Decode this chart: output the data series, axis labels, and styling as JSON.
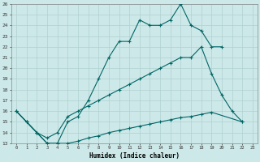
{
  "xlabel": "Humidex (Indice chaleur)",
  "xlim": [
    -0.5,
    23.5
  ],
  "ylim": [
    13,
    26
  ],
  "background_color": "#cde8e8",
  "grid_color": "#b0d0d0",
  "line_color": "#006666",
  "series": [
    {
      "x": [
        0,
        1,
        2,
        3,
        4,
        5,
        6,
        7,
        8,
        9,
        10,
        11,
        12,
        13,
        14,
        15,
        16,
        17,
        18,
        19,
        20
      ],
      "y": [
        16,
        15,
        14,
        13,
        13,
        15,
        15.5,
        17,
        19,
        21,
        22.5,
        22.5,
        24.5,
        24,
        24,
        24.5,
        26,
        24,
        23.5,
        22,
        22
      ]
    },
    {
      "x": [
        0,
        1,
        2,
        3,
        4,
        5,
        6,
        7,
        8,
        9,
        10,
        11,
        12,
        13,
        14,
        15,
        16,
        17,
        18,
        19,
        20,
        21,
        22
      ],
      "y": [
        16,
        15,
        14,
        13.5,
        14,
        15.5,
        16,
        16.5,
        17,
        17.5,
        18,
        18.5,
        19,
        19.5,
        20,
        20.5,
        21,
        21,
        22,
        19.5,
        17.5,
        16,
        15
      ]
    },
    {
      "x": [
        0,
        1,
        2,
        3,
        4,
        5,
        6,
        7,
        8,
        9,
        10,
        11,
        12,
        13,
        14,
        15,
        16,
        17,
        18,
        19,
        22
      ],
      "y": [
        16,
        15,
        14,
        13,
        13,
        13,
        13.2,
        13.5,
        13.7,
        14,
        14.2,
        14.4,
        14.6,
        14.8,
        15,
        15.2,
        15.4,
        15.5,
        15.7,
        15.9,
        15
      ]
    }
  ]
}
